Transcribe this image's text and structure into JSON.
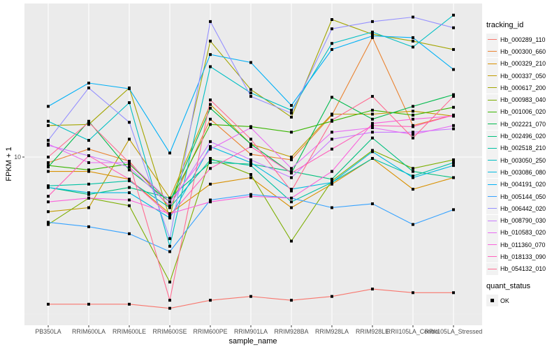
{
  "chart_data": {
    "type": "line",
    "title": "",
    "xlabel": "sample_name",
    "ylabel": "FPKM + 1",
    "y_scale": "log10",
    "y_ticks": [
      10
    ],
    "y_tick_labels": [
      "10"
    ],
    "ylim": [
      3.1,
      30
    ],
    "grid": true,
    "legend_position": "right",
    "categories": [
      "PB350LA",
      "RRIM600LA",
      "RRIM600LE",
      "RRIM600SE",
      "RRIM600PE",
      "RRIM901LA",
      "RRIM928BA",
      "RRIM928LA",
      "RRIM928LE",
      "RRII105LA_Control",
      "RRII105LA_Stressed"
    ],
    "legend_title": "tracking_id",
    "series": [
      {
        "name": "Hb_000289_110",
        "color": "#F8766D",
        "values": [
          3.4,
          3.4,
          3.4,
          3.3,
          3.5,
          3.6,
          3.5,
          3.6,
          3.8,
          3.7,
          3.7
        ]
      },
      {
        "name": "Hb_000300_660",
        "color": "#EA8331",
        "values": [
          9.6,
          10.6,
          9.7,
          6.9,
          13.2,
          10.2,
          9.8,
          13.6,
          24.0,
          12.6,
          13.6
        ]
      },
      {
        "name": "Hb_000329_210",
        "color": "#D89000",
        "values": [
          9.0,
          9.0,
          8.5,
          6.6,
          8.2,
          8.6,
          6.9,
          8.2,
          9.9,
          7.9,
          8.6
        ]
      },
      {
        "name": "Hb_000337_050",
        "color": "#C09B00",
        "values": [
          6.7,
          6.9,
          11.4,
          7.4,
          14.7,
          11.0,
          10.0,
          13.7,
          13.7,
          14.0,
          13.5
        ]
      },
      {
        "name": "Hb_000617_200",
        "color": "#A3A500",
        "values": [
          12.6,
          12.7,
          16.6,
          6.4,
          23.4,
          16.4,
          13.4,
          27.4,
          24.6,
          23.4,
          22.0
        ]
      },
      {
        "name": "Hb_000983_040",
        "color": "#7CAE00",
        "values": [
          6.1,
          7.4,
          7.0,
          4.0,
          9.9,
          8.8,
          5.4,
          8.4,
          10.5,
          9.2,
          9.8
        ]
      },
      {
        "name": "Hb_001006_020",
        "color": "#39B600",
        "values": [
          9.4,
          9.1,
          9.5,
          7.2,
          12.7,
          12.5,
          12.0,
          13.0,
          14.1,
          13.6,
          14.4
        ]
      },
      {
        "name": "Hb_002221_070",
        "color": "#00BB4E",
        "values": [
          9.3,
          13.0,
          9.1,
          7.2,
          14.3,
          11.0,
          8.9,
          15.5,
          13.2,
          14.5,
          15.8
        ]
      },
      {
        "name": "Hb_002496_020",
        "color": "#00BF7D",
        "values": [
          8.0,
          7.6,
          8.0,
          7.4,
          9.6,
          9.5,
          9.0,
          8.5,
          11.5,
          9.0,
          8.6
        ]
      },
      {
        "name": "Hb_002518_210",
        "color": "#00C1A3",
        "values": [
          8.1,
          8.2,
          8.4,
          6.9,
          9.8,
          9.4,
          7.2,
          8.3,
          9.9,
          8.7,
          9.6
        ]
      },
      {
        "name": "Hb_003050_250",
        "color": "#00BFC4",
        "values": [
          13.0,
          11.3,
          14.9,
          5.2,
          19.4,
          16.0,
          14.1,
          23.0,
          25.0,
          22.4,
          28.3
        ]
      },
      {
        "name": "Hb_003086_080",
        "color": "#00BAE0",
        "values": [
          8.0,
          7.7,
          7.7,
          6.4,
          10.8,
          9.6,
          7.9,
          8.3,
          10.4,
          8.6,
          9.4
        ]
      },
      {
        "name": "Hb_004191_020",
        "color": "#00B0F6",
        "values": [
          14.5,
          17.2,
          16.5,
          10.3,
          21.2,
          20.0,
          14.6,
          22.0,
          24.3,
          24.0,
          19.0
        ]
      },
      {
        "name": "Hb_005144_050",
        "color": "#35A2FF",
        "values": [
          6.2,
          6.0,
          5.7,
          5.0,
          7.3,
          7.6,
          7.4,
          6.9,
          7.1,
          6.1,
          6.8
        ]
      },
      {
        "name": "Hb_006442_020",
        "color": "#9590FF",
        "values": [
          11.3,
          16.6,
          12.9,
          5.5,
          27.0,
          15.6,
          13.8,
          25.6,
          27.0,
          27.9,
          25.8
        ]
      },
      {
        "name": "Hb_008790_030",
        "color": "#C77CFF",
        "values": [
          10.9,
          10.1,
          9.3,
          7.0,
          11.2,
          9.8,
          8.6,
          11.4,
          12.0,
          12.0,
          12.3
        ]
      },
      {
        "name": "Hb_010583_020",
        "color": "#E76BF3",
        "values": [
          11.0,
          9.6,
          9.6,
          7.2,
          10.6,
          12.4,
          9.2,
          12.0,
          12.4,
          11.8,
          12.6
        ]
      },
      {
        "name": "Hb_011360_070",
        "color": "#FA62DB",
        "values": [
          7.2,
          7.4,
          7.3,
          6.6,
          7.2,
          7.5,
          7.4,
          9.0,
          12.8,
          13.2,
          13.5
        ]
      },
      {
        "name": "Hb_018133_090",
        "color": "#FF62BC",
        "values": [
          7.5,
          10.1,
          8.5,
          6.5,
          9.2,
          10.8,
          8.9,
          10.6,
          12.6,
          12.5,
          13.6
        ]
      },
      {
        "name": "Hb_054132_010",
        "color": "#FF6C91",
        "values": [
          10.0,
          12.9,
          9.6,
          3.5,
          15.2,
          11.4,
          7.8,
          13.1,
          15.6,
          11.5,
          15.6
        ]
      }
    ],
    "shape_legend": {
      "title": "quant_status",
      "items": [
        "OK"
      ]
    }
  }
}
